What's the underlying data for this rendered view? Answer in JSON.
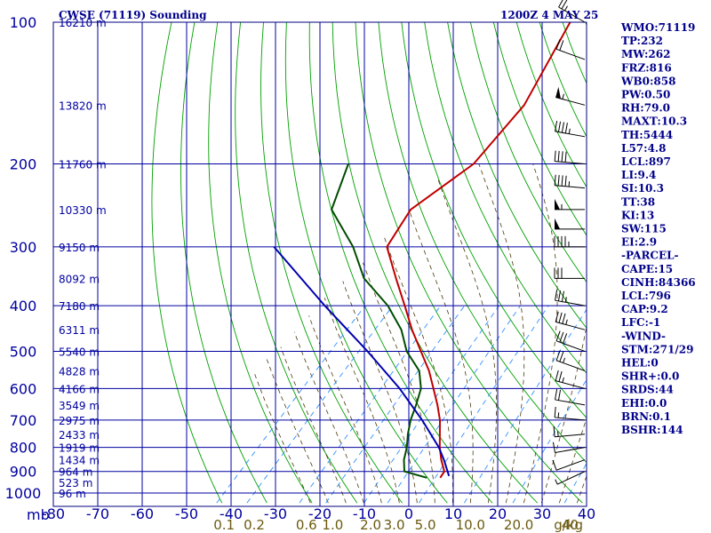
{
  "header": {
    "title": "CWSE (71119) Sounding",
    "datetime": "1200Z  4 MAY 25"
  },
  "chart_data": {
    "type": "line",
    "title": "CWSE (71119) Sounding",
    "pressure_unit": "mb",
    "mixing_ratio_unit": "g/kg",
    "pressure_ticks": [
      100,
      200,
      300,
      400,
      500,
      600,
      700,
      800,
      900,
      1000
    ],
    "temperature_ticks": [
      -80,
      -70,
      -60,
      -50,
      -40,
      -30,
      -20,
      -10,
      0,
      10,
      20,
      30,
      40
    ],
    "temperature_tick_labels": [
      "-80",
      "-70",
      "-60",
      "-50",
      "-40",
      "-30",
      "-20",
      "-10",
      "0",
      "10",
      "20",
      "30",
      "40"
    ],
    "mixing_ratio_ticks": [
      0.1,
      0.2,
      0.6,
      1.0,
      2.0,
      3.0,
      5.0,
      10.0,
      20.0,
      40.0
    ],
    "mixing_ratio_tick_labels": [
      "0.1",
      "0.2",
      "0.6",
      "1.0",
      "2.0",
      "3.0",
      "5.0",
      "10.0",
      "20.0",
      "40"
    ],
    "height_labels": [
      {
        "p": 100,
        "label": "16210 m"
      },
      {
        "p": 150,
        "label": "13820 m"
      },
      {
        "p": 200,
        "label": "11760 m"
      },
      {
        "p": 250,
        "label": "10330 m"
      },
      {
        "p": 300,
        "label": "9150 m"
      },
      {
        "p": 350,
        "label": "8092 m"
      },
      {
        "p": 400,
        "label": "7180 m"
      },
      {
        "p": 450,
        "label": "6311 m"
      },
      {
        "p": 500,
        "label": "5540 m"
      },
      {
        "p": 550,
        "label": "4828 m"
      },
      {
        "p": 600,
        "label": "4166 m"
      },
      {
        "p": 650,
        "label": "3549 m"
      },
      {
        "p": 700,
        "label": "2975 m"
      },
      {
        "p": 750,
        "label": "2433 m"
      },
      {
        "p": 800,
        "label": "1919 m"
      },
      {
        "p": 850,
        "label": "1434 m"
      },
      {
        "p": 900,
        "label": "964 m"
      },
      {
        "p": 950,
        "label": "523 m"
      },
      {
        "p": 1000,
        "label": "96 m"
      }
    ],
    "series": [
      {
        "color": "#c00000",
        "points": [
          {
            "p": 928,
            "t": 3.8
          },
          {
            "p": 900,
            "t": 3.4
          },
          {
            "p": 850,
            "t": 0.2
          },
          {
            "p": 800,
            "t": -2.8
          },
          {
            "p": 750,
            "t": -5.6
          },
          {
            "p": 700,
            "t": -8.6
          },
          {
            "p": 650,
            "t": -12.4
          },
          {
            "p": 600,
            "t": -16.8
          },
          {
            "p": 550,
            "t": -21.6
          },
          {
            "p": 500,
            "t": -27.6
          },
          {
            "p": 450,
            "t": -34.2
          },
          {
            "p": 400,
            "t": -41.0
          },
          {
            "p": 350,
            "t": -48.8
          },
          {
            "p": 300,
            "t": -57.6
          },
          {
            "p": 250,
            "t": -60.2
          },
          {
            "p": 200,
            "t": -55.8
          },
          {
            "p": 150,
            "t": -57.0
          },
          {
            "p": 100,
            "t": -64.4
          }
        ]
      },
      {
        "color": "#004d00",
        "points": [
          {
            "p": 928,
            "t": 0.8
          },
          {
            "p": 900,
            "t": -5.6
          },
          {
            "p": 850,
            "t": -8.2
          },
          {
            "p": 800,
            "t": -10.2
          },
          {
            "p": 750,
            "t": -12.8
          },
          {
            "p": 700,
            "t": -15.2
          },
          {
            "p": 650,
            "t": -17.2
          },
          {
            "p": 600,
            "t": -19.6
          },
          {
            "p": 550,
            "t": -23.8
          },
          {
            "p": 500,
            "t": -30.8
          },
          {
            "p": 450,
            "t": -36.6
          },
          {
            "p": 400,
            "t": -44.8
          },
          {
            "p": 350,
            "t": -56.0
          },
          {
            "p": 300,
            "t": -65.2
          },
          {
            "p": 250,
            "t": -78.0
          },
          {
            "p": 200,
            "t": -84.0
          }
        ]
      },
      {
        "color": "#0000b0",
        "points": [
          {
            "p": 920,
            "t": 5.4
          },
          {
            "p": 850,
            "t": 0.8
          },
          {
            "p": 800,
            "t": -3.0
          },
          {
            "p": 700,
            "t": -12.6
          },
          {
            "p": 600,
            "t": -24.4
          },
          {
            "p": 500,
            "t": -39.6
          },
          {
            "p": 400,
            "t": -59.0
          },
          {
            "p": 300,
            "t": -83.0
          }
        ]
      }
    ],
    "wind_barbs": [
      {
        "p": 100,
        "dir": 300,
        "kt": 25
      },
      {
        "p": 120,
        "dir": 290,
        "kt": 20
      },
      {
        "p": 150,
        "dir": 285,
        "kt": 55
      },
      {
        "p": 175,
        "dir": 280,
        "kt": 45
      },
      {
        "p": 200,
        "dir": 275,
        "kt": 40
      },
      {
        "p": 225,
        "dir": 275,
        "kt": 45
      },
      {
        "p": 250,
        "dir": 270,
        "kt": 55
      },
      {
        "p": 275,
        "dir": 270,
        "kt": 50
      },
      {
        "p": 300,
        "dir": 270,
        "kt": 45
      },
      {
        "p": 350,
        "dir": 270,
        "kt": 30
      },
      {
        "p": 400,
        "dir": 280,
        "kt": 35
      },
      {
        "p": 450,
        "dir": 285,
        "kt": 35
      },
      {
        "p": 500,
        "dir": 290,
        "kt": 30
      },
      {
        "p": 550,
        "dir": 290,
        "kt": 25
      },
      {
        "p": 600,
        "dir": 285,
        "kt": 25
      },
      {
        "p": 650,
        "dir": 280,
        "kt": 20
      },
      {
        "p": 700,
        "dir": 275,
        "kt": 15
      },
      {
        "p": 750,
        "dir": 265,
        "kt": 15
      },
      {
        "p": 800,
        "dir": 260,
        "kt": 10
      },
      {
        "p": 850,
        "dir": 250,
        "kt": 10
      },
      {
        "p": 900,
        "dir": 245,
        "kt": 5
      }
    ]
  },
  "indices": [
    "WMO:71119",
    "TP:232",
    "MW:262",
    "FRZ:816",
    "WB0:858",
    "PW:0.50",
    "RH:79.0",
    "MAXT:10.3",
    "TH:5444",
    "L57:4.8",
    "LCL:897",
    "LI:9.4",
    "SI:10.3",
    "TT:38",
    "KI:13",
    "SW:115",
    "EI:2.9",
    "-PARCEL-",
    "CAPE:15",
    "CINH:84366",
    "LCL:796",
    "CAP:9.2",
    "LFC:-1",
    "-WIND-",
    "STM:271/29",
    "HEL:0",
    "SHR+:0.0",
    "SRDS:44",
    "EHI:0.0",
    "BRN:0.1",
    "BSHR:144"
  ],
  "colors": {
    "frame": "#000080",
    "grid": "#0000a0",
    "dry_adiabat": "#00a000",
    "moist_adiabat": "#4a3a0a",
    "mixing_ratio": "#3090ff"
  }
}
